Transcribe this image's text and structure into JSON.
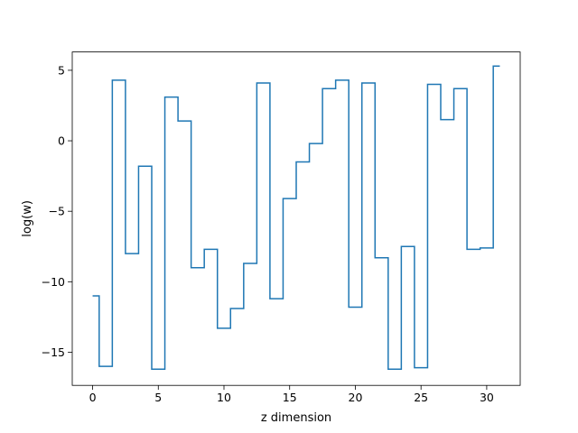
{
  "chart_data": {
    "type": "line",
    "step_style": "mid",
    "title": "",
    "xlabel": "z dimension",
    "ylabel": "log(w)",
    "xlim": [
      -1.55,
      32.55
    ],
    "ylim": [
      -17.35,
      6.3
    ],
    "x_ticks": [
      0,
      5,
      10,
      15,
      20,
      25,
      30
    ],
    "x_tick_labels": [
      "0",
      "5",
      "10",
      "15",
      "20",
      "25",
      "30"
    ],
    "y_ticks": [
      -15,
      -10,
      -5,
      0,
      5
    ],
    "y_tick_labels": [
      "−15",
      "−10",
      "−5",
      "0",
      "5"
    ],
    "grid": false,
    "legend": "none",
    "line_color": "#1f77b4",
    "series": [
      {
        "x": [
          0,
          1,
          2,
          3,
          4,
          5,
          6,
          7,
          8,
          9,
          10,
          11,
          12,
          13,
          14,
          15,
          16,
          17,
          18,
          19,
          20,
          21,
          22,
          23,
          24,
          25,
          26,
          27,
          28,
          29,
          30,
          31
        ],
        "values": [
          -11.0,
          -16.0,
          4.3,
          -8.0,
          -1.8,
          -16.2,
          3.1,
          1.4,
          -9.0,
          -7.7,
          -13.3,
          -11.9,
          -8.7,
          4.1,
          -11.2,
          -4.1,
          -1.5,
          -0.2,
          3.7,
          4.3,
          -11.8,
          4.1,
          -8.3,
          -16.2,
          -7.5,
          -16.1,
          4.0,
          1.5,
          3.7,
          -7.7,
          -7.6,
          5.3
        ]
      }
    ]
  }
}
